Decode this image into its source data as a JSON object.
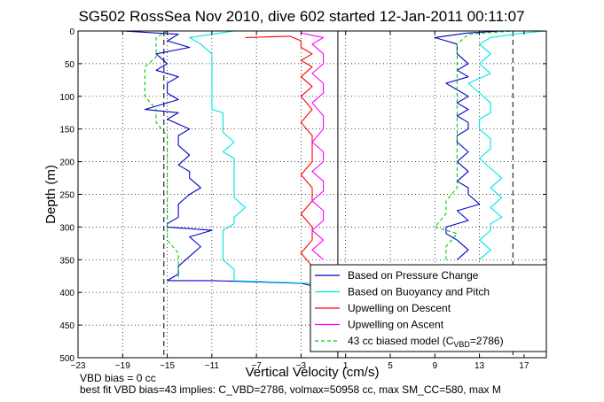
{
  "chart_data": {
    "type": "line",
    "title": "SG502 RossSea Nov 2010, dive 602 started 12-Jan-2011 00:11:07",
    "xlabel": "Vertical Velocity (cm/s)",
    "ylabel": "Depth (m)",
    "xlim": [
      -23,
      19
    ],
    "ylim": [
      0,
      500
    ],
    "y_reversed": true,
    "grid": true,
    "xticks": [
      -23,
      -19,
      -15,
      -11,
      -7,
      -3,
      1,
      5,
      9,
      13,
      17
    ],
    "yticks": [
      0,
      50,
      100,
      150,
      200,
      250,
      300,
      350,
      400,
      450,
      500
    ],
    "legend_position": "bottom-right",
    "vertical_lines": [
      {
        "x": -15.3,
        "style": "dashed"
      },
      {
        "x": 16.0,
        "style": "dashed"
      },
      {
        "x": 0.3,
        "style": "solid"
      }
    ],
    "series": [
      {
        "name": "Based on Pressure Change",
        "color": "#0000cc",
        "style": "solid",
        "points": [
          [
            -19,
            0
          ],
          [
            -14,
            5
          ],
          [
            -15,
            15
          ],
          [
            -13,
            25
          ],
          [
            -16,
            35
          ],
          [
            -15,
            50
          ],
          [
            -16,
            60
          ],
          [
            -14,
            70
          ],
          [
            -15,
            80
          ],
          [
            -15,
            95
          ],
          [
            -14,
            105
          ],
          [
            -16,
            115
          ],
          [
            -17,
            120
          ],
          [
            -14,
            125
          ],
          [
            -15,
            135
          ],
          [
            -13,
            150
          ],
          [
            -14,
            160
          ],
          [
            -14,
            175
          ],
          [
            -13,
            190
          ],
          [
            -14,
            205
          ],
          [
            -13,
            215
          ],
          [
            -13,
            225
          ],
          [
            -12,
            240
          ],
          [
            -13,
            250
          ],
          [
            -14,
            265
          ],
          [
            -14,
            285
          ],
          [
            -15,
            295
          ],
          [
            -15,
            300
          ],
          [
            -11,
            305
          ],
          [
            -13,
            315
          ],
          [
            -12,
            330
          ],
          [
            -13,
            345
          ],
          [
            -14,
            360
          ],
          [
            -14,
            372
          ],
          [
            -15,
            382
          ],
          [
            -11,
            382
          ],
          [
            -3,
            386
          ],
          [
            -2,
            390
          ]
        ]
      },
      {
        "name": "Based on Pressure Change",
        "color": "#0000cc",
        "style": "solid",
        "points": [
          [
            11,
            350
          ],
          [
            12,
            335
          ],
          [
            11,
            320
          ],
          [
            10,
            310
          ],
          [
            10,
            300
          ],
          [
            12,
            290
          ],
          [
            11,
            275
          ],
          [
            13,
            265
          ],
          [
            12,
            250
          ],
          [
            12,
            240
          ],
          [
            11,
            230
          ],
          [
            12,
            215
          ],
          [
            11,
            200
          ],
          [
            12,
            185
          ],
          [
            11,
            170
          ],
          [
            11,
            160
          ],
          [
            12,
            150
          ],
          [
            12,
            140
          ],
          [
            11,
            130
          ],
          [
            12,
            120
          ],
          [
            11,
            110
          ],
          [
            12,
            100
          ],
          [
            11,
            90
          ],
          [
            10,
            80
          ],
          [
            12,
            70
          ],
          [
            11,
            60
          ],
          [
            12,
            50
          ],
          [
            11,
            35
          ],
          [
            11,
            20
          ],
          [
            9,
            10
          ],
          [
            12,
            3
          ],
          [
            15,
            0
          ]
        ]
      },
      {
        "name": "Based on Buoyancy and Pitch",
        "color": "#00e5e5",
        "style": "solid",
        "points": [
          [
            -9,
            0
          ],
          [
            -13,
            10
          ],
          [
            -12,
            20
          ],
          [
            -11,
            35
          ],
          [
            -11,
            50
          ],
          [
            -11,
            65
          ],
          [
            -11,
            80
          ],
          [
            -11,
            95
          ],
          [
            -11,
            110
          ],
          [
            -11,
            120
          ],
          [
            -10,
            125
          ],
          [
            -10,
            140
          ],
          [
            -10,
            155
          ],
          [
            -9,
            170
          ],
          [
            -10,
            185
          ],
          [
            -9,
            195
          ],
          [
            -9,
            210
          ],
          [
            -9,
            225
          ],
          [
            -9,
            240
          ],
          [
            -9,
            255
          ],
          [
            -8,
            270
          ],
          [
            -9,
            285
          ],
          [
            -9,
            295
          ],
          [
            -10,
            305
          ],
          [
            -10,
            320
          ],
          [
            -10,
            335
          ],
          [
            -10,
            350
          ],
          [
            -9,
            365
          ],
          [
            -9,
            382
          ],
          [
            -2,
            386
          ]
        ]
      },
      {
        "name": "Based on Buoyancy and Pitch",
        "color": "#00e5e5",
        "style": "solid",
        "points": [
          [
            13,
            350
          ],
          [
            14,
            335
          ],
          [
            13,
            320
          ],
          [
            14,
            305
          ],
          [
            14,
            295
          ],
          [
            15,
            285
          ],
          [
            14,
            270
          ],
          [
            15,
            255
          ],
          [
            14,
            240
          ],
          [
            15,
            225
          ],
          [
            14,
            210
          ],
          [
            13,
            195
          ],
          [
            14,
            180
          ],
          [
            14,
            165
          ],
          [
            13,
            150
          ],
          [
            13,
            135
          ],
          [
            14,
            125
          ],
          [
            14,
            110
          ],
          [
            13,
            95
          ],
          [
            12,
            80
          ],
          [
            14,
            65
          ],
          [
            13,
            50
          ],
          [
            14,
            35
          ],
          [
            13,
            20
          ],
          [
            14,
            10
          ],
          [
            17,
            3
          ],
          [
            19,
            0
          ]
        ]
      },
      {
        "name": "Upwelling on Descent",
        "color": "#ff0000",
        "style": "solid",
        "points": [
          [
            -8,
            10
          ],
          [
            -4,
            8
          ],
          [
            -3,
            15
          ],
          [
            -3,
            25
          ],
          [
            -2,
            35
          ],
          [
            -3,
            45
          ],
          [
            -2,
            55
          ],
          [
            -3,
            70
          ],
          [
            -2,
            85
          ],
          [
            -3,
            100
          ],
          [
            -2,
            120
          ],
          [
            -3,
            140
          ],
          [
            -2,
            160
          ],
          [
            -2,
            180
          ],
          [
            -2,
            200
          ],
          [
            -3,
            220
          ],
          [
            -2,
            240
          ],
          [
            -2,
            260
          ],
          [
            -3,
            280
          ],
          [
            -2,
            300
          ],
          [
            -2,
            320
          ],
          [
            -3,
            340
          ],
          [
            -2,
            360
          ],
          [
            -2,
            372
          ]
        ]
      },
      {
        "name": "Upwelling on Ascent",
        "color": "#ff00ff",
        "style": "solid",
        "points": [
          [
            -1,
            350
          ],
          [
            -2,
            335
          ],
          [
            -1,
            320
          ],
          [
            -2,
            305
          ],
          [
            -1,
            290
          ],
          [
            -1,
            275
          ],
          [
            -2,
            260
          ],
          [
            -1,
            245
          ],
          [
            -1,
            230
          ],
          [
            -2,
            215
          ],
          [
            -1,
            200
          ],
          [
            -1,
            185
          ],
          [
            -2,
            170
          ],
          [
            -1,
            150
          ],
          [
            -1,
            130
          ],
          [
            -2,
            110
          ],
          [
            -1,
            95
          ],
          [
            -1,
            80
          ],
          [
            -2,
            65
          ],
          [
            -1,
            50
          ],
          [
            -1,
            35
          ],
          [
            -2,
            20
          ],
          [
            -1,
            10
          ],
          [
            -3,
            3
          ]
        ]
      },
      {
        "name": "43 cc biased model (C_VBD=2786)",
        "color": "#00cc00",
        "style": "dashed",
        "points": [
          [
            -15,
            0
          ],
          [
            -16,
            10
          ],
          [
            -16,
            25
          ],
          [
            -16,
            40
          ],
          [
            -17,
            55
          ],
          [
            -17,
            70
          ],
          [
            -17,
            85
          ],
          [
            -17,
            100
          ],
          [
            -16,
            120
          ],
          [
            -16,
            140
          ],
          [
            -15,
            160
          ],
          [
            -15,
            180
          ],
          [
            -15,
            200
          ],
          [
            -15,
            220
          ],
          [
            -15,
            240
          ],
          [
            -15,
            260
          ],
          [
            -15,
            280
          ],
          [
            -15,
            300
          ],
          [
            -15,
            320
          ],
          [
            -14,
            340
          ],
          [
            -14,
            360
          ],
          [
            -14,
            382
          ]
        ]
      },
      {
        "name": "43 cc biased model (C_VBD=2786)",
        "color": "#00cc00",
        "style": "dashed",
        "points": [
          [
            10,
            350
          ],
          [
            10,
            330
          ],
          [
            11,
            310
          ],
          [
            9,
            300
          ],
          [
            10,
            280
          ],
          [
            10,
            260
          ],
          [
            11,
            240
          ],
          [
            11,
            220
          ],
          [
            11,
            200
          ],
          [
            11,
            180
          ],
          [
            11,
            160
          ],
          [
            11,
            140
          ],
          [
            11,
            120
          ],
          [
            11,
            100
          ],
          [
            11,
            80
          ],
          [
            11,
            60
          ],
          [
            11,
            40
          ],
          [
            11,
            20
          ],
          [
            12,
            5
          ],
          [
            16,
            0
          ]
        ]
      }
    ],
    "legend": [
      {
        "label": "Based on Pressure Change",
        "color": "#0000cc",
        "style": "solid"
      },
      {
        "label": "Based on Buoyancy and Pitch",
        "color": "#00e5e5",
        "style": "solid"
      },
      {
        "label": "Upwelling on Descent",
        "color": "#ff0000",
        "style": "solid"
      },
      {
        "label": "Upwelling on Ascent",
        "color": "#ff00ff",
        "style": "solid"
      },
      {
        "label": "43 cc biased model (C",
        "sub": "VBD",
        "suffix": "=2786)",
        "color": "#00cc00",
        "style": "dashed"
      }
    ]
  },
  "notes": {
    "vbd_bias": "VBD bias = 0 cc",
    "best_fit": "best fit VBD bias=43 implies: C_VBD=2786, volmax=50958 cc, max SM_CC=580, max M"
  }
}
